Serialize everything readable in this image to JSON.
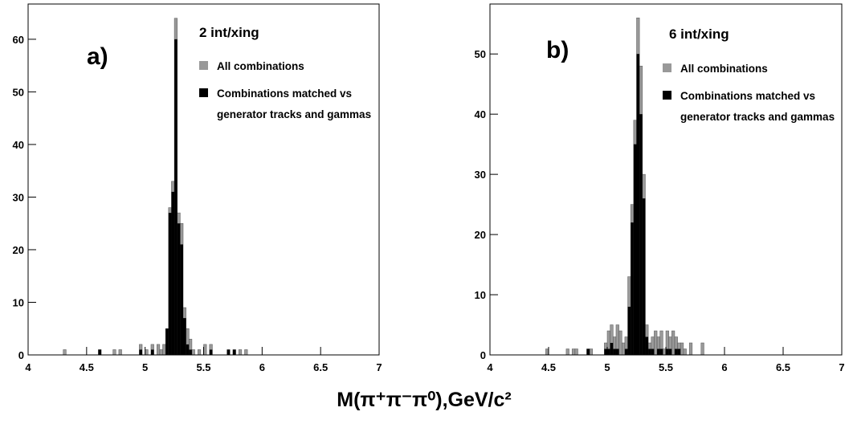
{
  "chart_data": [
    {
      "type": "histogram",
      "label": "a)",
      "annotation": "2 int/xing",
      "bins": [
        4.25,
        4.275,
        4.3,
        4.325,
        4.35,
        4.375,
        4.4,
        4.425,
        4.45,
        4.475,
        4.5,
        4.525,
        4.55,
        4.575,
        4.6,
        4.625,
        4.65,
        4.675,
        4.7,
        4.725,
        4.75,
        4.775,
        4.8,
        4.825,
        4.85,
        4.875,
        4.9,
        4.925,
        4.95,
        4.975,
        5,
        5.025,
        5.05,
        5.075,
        5.1,
        5.125,
        5.15,
        5.175,
        5.2,
        5.225,
        5.25,
        5.275,
        5.3,
        5.325,
        5.35,
        5.375,
        5.4,
        5.425,
        5.45,
        5.475,
        5.5,
        5.525,
        5.55,
        5.575,
        5.6,
        5.625,
        5.65,
        5.675,
        5.7,
        5.725,
        5.75,
        5.775,
        5.8,
        5.825,
        5.85,
        5.875,
        5.9
      ],
      "series": [
        {
          "name": "All combinations",
          "color": "#999999",
          "values": [
            0,
            0,
            1,
            0,
            0,
            0,
            0,
            0,
            0,
            0,
            0,
            0,
            0,
            0,
            1,
            0,
            0,
            0,
            0,
            1,
            0,
            1,
            0,
            0,
            0,
            0,
            0,
            0,
            2,
            0,
            1,
            0,
            2,
            0,
            2,
            1,
            2,
            5,
            28,
            33,
            64,
            27,
            25,
            9,
            5,
            3,
            1,
            0,
            1,
            0,
            2,
            0,
            2,
            0,
            0,
            0,
            0,
            0,
            1,
            0,
            1,
            0,
            1,
            0,
            1,
            0
          ]
        },
        {
          "name": "Combinations matched vs generator tracks and gammas",
          "color": "#000000",
          "values": [
            0,
            0,
            0,
            0,
            0,
            0,
            0,
            0,
            0,
            0,
            0,
            0,
            0,
            0,
            1,
            0,
            0,
            0,
            0,
            0,
            0,
            0,
            0,
            0,
            0,
            0,
            0,
            0,
            1,
            0,
            0,
            0,
            1,
            0,
            0,
            0,
            0,
            5,
            27,
            31,
            60,
            25,
            21,
            7,
            2,
            1,
            0,
            0,
            0,
            0,
            0,
            0,
            1,
            0,
            0,
            0,
            0,
            0,
            1,
            0,
            1,
            0,
            0,
            0,
            0,
            0
          ]
        }
      ],
      "xlim": [
        4,
        7
      ],
      "xticks": [
        4,
        4.5,
        5,
        5.5,
        6,
        6.5,
        7
      ],
      "ylim": [
        0,
        66.7
      ],
      "yticks": [
        0,
        10,
        20,
        30,
        40,
        50,
        60
      ]
    },
    {
      "type": "histogram",
      "label": "b)",
      "annotation": "6 int/xing",
      "bins": [
        4.25,
        4.275,
        4.3,
        4.325,
        4.35,
        4.375,
        4.4,
        4.425,
        4.45,
        4.475,
        4.5,
        4.525,
        4.55,
        4.575,
        4.6,
        4.625,
        4.65,
        4.675,
        4.7,
        4.725,
        4.75,
        4.775,
        4.8,
        4.825,
        4.85,
        4.875,
        4.9,
        4.925,
        4.95,
        4.975,
        5,
        5.025,
        5.05,
        5.075,
        5.1,
        5.125,
        5.15,
        5.175,
        5.2,
        5.225,
        5.25,
        5.275,
        5.3,
        5.325,
        5.35,
        5.375,
        5.4,
        5.425,
        5.45,
        5.475,
        5.5,
        5.525,
        5.55,
        5.575,
        5.6,
        5.625,
        5.65,
        5.675,
        5.7,
        5.725,
        5.75,
        5.775,
        5.8,
        5.825,
        5.85,
        5.875,
        5.9
      ],
      "series": [
        {
          "name": "All combinations",
          "color": "#999999",
          "values": [
            0,
            0,
            0,
            0,
            0,
            0,
            0,
            0,
            0,
            1,
            0,
            0,
            0,
            0,
            0,
            0,
            1,
            0,
            1,
            1,
            0,
            0,
            0,
            1,
            1,
            0,
            0,
            0,
            0,
            2,
            4,
            5,
            3,
            5,
            4,
            2,
            3,
            13,
            25,
            39,
            56,
            48,
            30,
            5,
            2,
            3,
            4,
            3,
            4,
            1,
            4,
            3,
            4,
            3,
            2,
            2,
            1,
            0,
            2,
            0,
            0,
            0,
            2,
            0,
            0,
            0
          ]
        },
        {
          "name": "Combinations matched vs generator tracks and gammas",
          "color": "#000000",
          "values": [
            0,
            0,
            0,
            0,
            0,
            0,
            0,
            0,
            0,
            0,
            0,
            0,
            0,
            0,
            0,
            0,
            0,
            0,
            0,
            0,
            0,
            0,
            0,
            1,
            0,
            0,
            0,
            0,
            0,
            1,
            1,
            2,
            1,
            1,
            0,
            0,
            1,
            8,
            22,
            35,
            50,
            40,
            26,
            3,
            1,
            1,
            0,
            1,
            1,
            0,
            1,
            1,
            0,
            1,
            1,
            0,
            0,
            0,
            0,
            0,
            0,
            0,
            0,
            0,
            0,
            0
          ]
        }
      ],
      "xlim": [
        4,
        7
      ],
      "xticks": [
        4,
        4.5,
        5,
        5.5,
        6,
        6.5,
        7
      ],
      "ylim": [
        0,
        58.3
      ],
      "yticks": [
        0,
        10,
        20,
        30,
        40,
        50
      ]
    }
  ],
  "xlabel": "M(π⁺π⁻π⁰),GeV/c²"
}
